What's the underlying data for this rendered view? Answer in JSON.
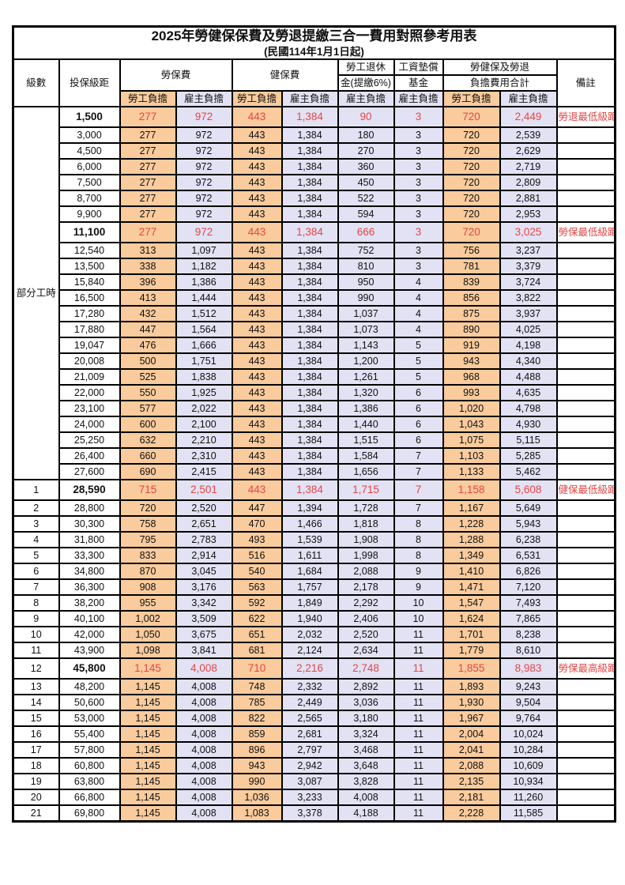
{
  "title": "2025年勞健保保費及勞退提繳三合一費用對照參考用表",
  "subtitle": "(民國114年1月1日起)",
  "header": {
    "level": "級數",
    "bracket": "投保級距",
    "labor_insurance": "勞保費",
    "health_insurance": "健保費",
    "pension_line1": "勞工退休",
    "pension_line2": "金(提繳6%)",
    "wage_fund_line1": "工資墊償",
    "wage_fund_line2": "基金",
    "total_line1": "勞健保及勞退",
    "total_line2": "負擔費用合計",
    "remark": "備註",
    "employee": "勞工負擔",
    "employer": "雇主負擔"
  },
  "part_time_label": "部分工時",
  "colors": {
    "employee_bg": "#f9cb9d",
    "employer_bg": "#e2e2f4",
    "highlight_text": "#e64545",
    "border": "#000000"
  },
  "rows": [
    {
      "pt": true,
      "br": "1,500",
      "v": [
        "277",
        "972",
        "443",
        "1,384",
        "90",
        "3",
        "720",
        "2,449"
      ],
      "rm": "勞退最低級距",
      "hl": true
    },
    {
      "pt": true,
      "br": "3,000",
      "v": [
        "277",
        "972",
        "443",
        "1,384",
        "180",
        "3",
        "720",
        "2,539"
      ]
    },
    {
      "pt": true,
      "br": "4,500",
      "v": [
        "277",
        "972",
        "443",
        "1,384",
        "270",
        "3",
        "720",
        "2,629"
      ]
    },
    {
      "pt": true,
      "br": "6,000",
      "v": [
        "277",
        "972",
        "443",
        "1,384",
        "360",
        "3",
        "720",
        "2,719"
      ]
    },
    {
      "pt": true,
      "br": "7,500",
      "v": [
        "277",
        "972",
        "443",
        "1,384",
        "450",
        "3",
        "720",
        "2,809"
      ]
    },
    {
      "pt": true,
      "br": "8,700",
      "v": [
        "277",
        "972",
        "443",
        "1,384",
        "522",
        "3",
        "720",
        "2,881"
      ]
    },
    {
      "pt": true,
      "br": "9,900",
      "v": [
        "277",
        "972",
        "443",
        "1,384",
        "594",
        "3",
        "720",
        "2,953"
      ]
    },
    {
      "pt": true,
      "br": "11,100",
      "v": [
        "277",
        "972",
        "443",
        "1,384",
        "666",
        "3",
        "720",
        "3,025"
      ],
      "rm": "勞保最低級距",
      "hl": true
    },
    {
      "pt": true,
      "br": "12,540",
      "v": [
        "313",
        "1,097",
        "443",
        "1,384",
        "752",
        "3",
        "756",
        "3,237"
      ]
    },
    {
      "pt": true,
      "br": "13,500",
      "v": [
        "338",
        "1,182",
        "443",
        "1,384",
        "810",
        "3",
        "781",
        "3,379"
      ]
    },
    {
      "pt": true,
      "br": "15,840",
      "v": [
        "396",
        "1,386",
        "443",
        "1,384",
        "950",
        "4",
        "839",
        "3,724"
      ]
    },
    {
      "pt": true,
      "br": "16,500",
      "v": [
        "413",
        "1,444",
        "443",
        "1,384",
        "990",
        "4",
        "856",
        "3,822"
      ]
    },
    {
      "pt": true,
      "br": "17,280",
      "v": [
        "432",
        "1,512",
        "443",
        "1,384",
        "1,037",
        "4",
        "875",
        "3,937"
      ]
    },
    {
      "pt": true,
      "br": "17,880",
      "v": [
        "447",
        "1,564",
        "443",
        "1,384",
        "1,073",
        "4",
        "890",
        "4,025"
      ]
    },
    {
      "pt": true,
      "br": "19,047",
      "v": [
        "476",
        "1,666",
        "443",
        "1,384",
        "1,143",
        "5",
        "919",
        "4,198"
      ]
    },
    {
      "pt": true,
      "br": "20,008",
      "v": [
        "500",
        "1,751",
        "443",
        "1,384",
        "1,200",
        "5",
        "943",
        "4,340"
      ]
    },
    {
      "pt": true,
      "br": "21,009",
      "v": [
        "525",
        "1,838",
        "443",
        "1,384",
        "1,261",
        "5",
        "968",
        "4,488"
      ]
    },
    {
      "pt": true,
      "br": "22,000",
      "v": [
        "550",
        "1,925",
        "443",
        "1,384",
        "1,320",
        "6",
        "993",
        "4,635"
      ]
    },
    {
      "pt": true,
      "br": "23,100",
      "v": [
        "577",
        "2,022",
        "443",
        "1,384",
        "1,386",
        "6",
        "1,020",
        "4,798"
      ]
    },
    {
      "pt": true,
      "br": "24,000",
      "v": [
        "600",
        "2,100",
        "443",
        "1,384",
        "1,440",
        "6",
        "1,043",
        "4,930"
      ]
    },
    {
      "pt": true,
      "br": "25,250",
      "v": [
        "632",
        "2,210",
        "443",
        "1,384",
        "1,515",
        "6",
        "1,075",
        "5,115"
      ]
    },
    {
      "pt": true,
      "br": "26,400",
      "v": [
        "660",
        "2,310",
        "443",
        "1,384",
        "1,584",
        "7",
        "1,103",
        "5,285"
      ]
    },
    {
      "pt": true,
      "br": "27,600",
      "v": [
        "690",
        "2,415",
        "443",
        "1,384",
        "1,656",
        "7",
        "1,133",
        "5,462"
      ]
    },
    {
      "lv": "1",
      "br": "28,590",
      "v": [
        "715",
        "2,501",
        "443",
        "1,384",
        "1,715",
        "7",
        "1,158",
        "5,608"
      ],
      "rm": "健保最低級距",
      "hl": true
    },
    {
      "lv": "2",
      "br": "28,800",
      "v": [
        "720",
        "2,520",
        "447",
        "1,394",
        "1,728",
        "7",
        "1,167",
        "5,649"
      ]
    },
    {
      "lv": "3",
      "br": "30,300",
      "v": [
        "758",
        "2,651",
        "470",
        "1,466",
        "1,818",
        "8",
        "1,228",
        "5,943"
      ]
    },
    {
      "lv": "4",
      "br": "31,800",
      "v": [
        "795",
        "2,783",
        "493",
        "1,539",
        "1,908",
        "8",
        "1,288",
        "6,238"
      ]
    },
    {
      "lv": "5",
      "br": "33,300",
      "v": [
        "833",
        "2,914",
        "516",
        "1,611",
        "1,998",
        "8",
        "1,349",
        "6,531"
      ]
    },
    {
      "lv": "6",
      "br": "34,800",
      "v": [
        "870",
        "3,045",
        "540",
        "1,684",
        "2,088",
        "9",
        "1,410",
        "6,826"
      ]
    },
    {
      "lv": "7",
      "br": "36,300",
      "v": [
        "908",
        "3,176",
        "563",
        "1,757",
        "2,178",
        "9",
        "1,471",
        "7,120"
      ]
    },
    {
      "lv": "8",
      "br": "38,200",
      "v": [
        "955",
        "3,342",
        "592",
        "1,849",
        "2,292",
        "10",
        "1,547",
        "7,493"
      ]
    },
    {
      "lv": "9",
      "br": "40,100",
      "v": [
        "1,002",
        "3,509",
        "622",
        "1,940",
        "2,406",
        "10",
        "1,624",
        "7,865"
      ]
    },
    {
      "lv": "10",
      "br": "42,000",
      "v": [
        "1,050",
        "3,675",
        "651",
        "2,032",
        "2,520",
        "11",
        "1,701",
        "8,238"
      ]
    },
    {
      "lv": "11",
      "br": "43,900",
      "v": [
        "1,098",
        "3,841",
        "681",
        "2,124",
        "2,634",
        "11",
        "1,779",
        "8,610"
      ]
    },
    {
      "lv": "12",
      "br": "45,800",
      "v": [
        "1,145",
        "4,008",
        "710",
        "2,216",
        "2,748",
        "11",
        "1,855",
        "8,983"
      ],
      "rm": "勞保最高級距",
      "hl": true
    },
    {
      "lv": "13",
      "br": "48,200",
      "v": [
        "1,145",
        "4,008",
        "748",
        "2,332",
        "2,892",
        "11",
        "1,893",
        "9,243"
      ]
    },
    {
      "lv": "14",
      "br": "50,600",
      "v": [
        "1,145",
        "4,008",
        "785",
        "2,449",
        "3,036",
        "11",
        "1,930",
        "9,504"
      ]
    },
    {
      "lv": "15",
      "br": "53,000",
      "v": [
        "1,145",
        "4,008",
        "822",
        "2,565",
        "3,180",
        "11",
        "1,967",
        "9,764"
      ]
    },
    {
      "lv": "16",
      "br": "55,400",
      "v": [
        "1,145",
        "4,008",
        "859",
        "2,681",
        "3,324",
        "11",
        "2,004",
        "10,024"
      ]
    },
    {
      "lv": "17",
      "br": "57,800",
      "v": [
        "1,145",
        "4,008",
        "896",
        "2,797",
        "3,468",
        "11",
        "2,041",
        "10,284"
      ]
    },
    {
      "lv": "18",
      "br": "60,800",
      "v": [
        "1,145",
        "4,008",
        "943",
        "2,942",
        "3,648",
        "11",
        "2,088",
        "10,609"
      ]
    },
    {
      "lv": "19",
      "br": "63,800",
      "v": [
        "1,145",
        "4,008",
        "990",
        "3,087",
        "3,828",
        "11",
        "2,135",
        "10,934"
      ]
    },
    {
      "lv": "20",
      "br": "66,800",
      "v": [
        "1,145",
        "4,008",
        "1,036",
        "3,233",
        "4,008",
        "11",
        "2,181",
        "11,260"
      ]
    },
    {
      "lv": "21",
      "br": "69,800",
      "v": [
        "1,145",
        "4,008",
        "1,083",
        "3,378",
        "4,188",
        "11",
        "2,228",
        "11,585"
      ]
    }
  ]
}
